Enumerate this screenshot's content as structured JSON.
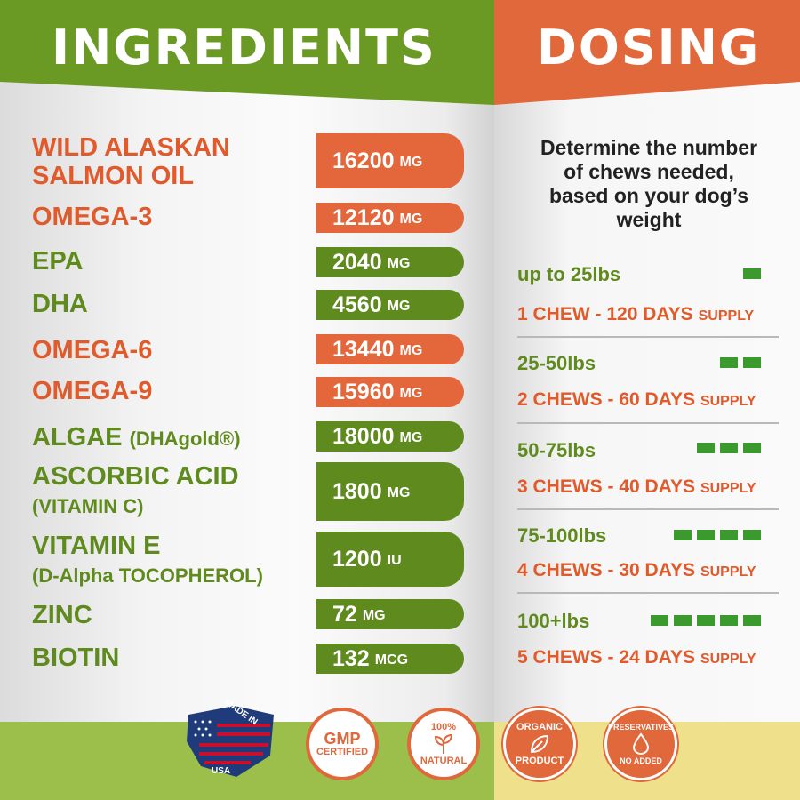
{
  "header": {
    "ingredients_title": "INGREDIENTS",
    "dosing_title": "DOSING"
  },
  "ingredients": [
    {
      "label": "WILD ALASKAN",
      "label2": "SALMON OIL",
      "value": "16200",
      "unit": "MG",
      "color": "orange"
    },
    {
      "label": "OMEGA-3",
      "value": "12120",
      "unit": "MG",
      "color": "orange"
    },
    {
      "label": "EPA",
      "value": "2040",
      "unit": "MG",
      "color": "green"
    },
    {
      "label": "DHA",
      "value": "4560",
      "unit": "MG",
      "color": "green"
    },
    {
      "label": "OMEGA-6",
      "value": "13440",
      "unit": "MG",
      "color": "orange"
    },
    {
      "label": "OMEGA-9",
      "value": "15960",
      "unit": "MG",
      "color": "orange"
    },
    {
      "label": "ALGAE",
      "label_suffix": "(DHAgold®)",
      "value": "18000",
      "unit": "MG",
      "color": "green"
    },
    {
      "label": "ASCORBIC ACID",
      "label2": "(VITAMIN C)",
      "value": "1800",
      "unit": "MG",
      "color": "green"
    },
    {
      "label": "VITAMIN E",
      "label2": "(D-Alpha TOCOPHEROL)",
      "value": "1200",
      "unit": "IU",
      "color": "green"
    },
    {
      "label": "ZINC",
      "value": "72",
      "unit": "MG",
      "color": "green"
    },
    {
      "label": "BIOTIN",
      "value": "132",
      "unit": "MCG",
      "color": "green"
    }
  ],
  "dosing": {
    "intro": "Determine the number of chews needed, based on your dog’s weight",
    "tiers": [
      {
        "weight": "up to 25lbs",
        "chews": "1 CHEW - 120 DAYS",
        "supply": "SUPPLY",
        "bars": 1
      },
      {
        "weight": "25-50lbs",
        "chews": "2 CHEWS - 60 DAYS",
        "supply": "SUPPLY",
        "bars": 2
      },
      {
        "weight": "50-75lbs",
        "chews": "3 CHEWS - 40 DAYS",
        "supply": "SUPPLY",
        "bars": 3
      },
      {
        "weight": "75-100lbs",
        "chews": "4 CHEWS - 30 DAYS",
        "supply": "SUPPLY",
        "bars": 4
      },
      {
        "weight": "100+lbs",
        "chews": "5 CHEWS - 24 DAYS",
        "supply": "SUPPLY",
        "bars": 5
      }
    ]
  },
  "badges": {
    "usa_top": "MADE IN",
    "usa_bottom": "USA",
    "gmp_main": "GMP",
    "gmp_sub": "CERTIFIED",
    "natural_top": "100%",
    "natural_bottom": "NATURAL",
    "organic_top": "ORGANIC",
    "organic_bottom": "PRODUCT",
    "preservatives_top": "PRESERVATIVES",
    "preservatives_bottom": "NO ADDED"
  },
  "colors": {
    "green": "#5f8a1e",
    "orange": "#e3673a",
    "bar_green": "#3b9a2e"
  }
}
